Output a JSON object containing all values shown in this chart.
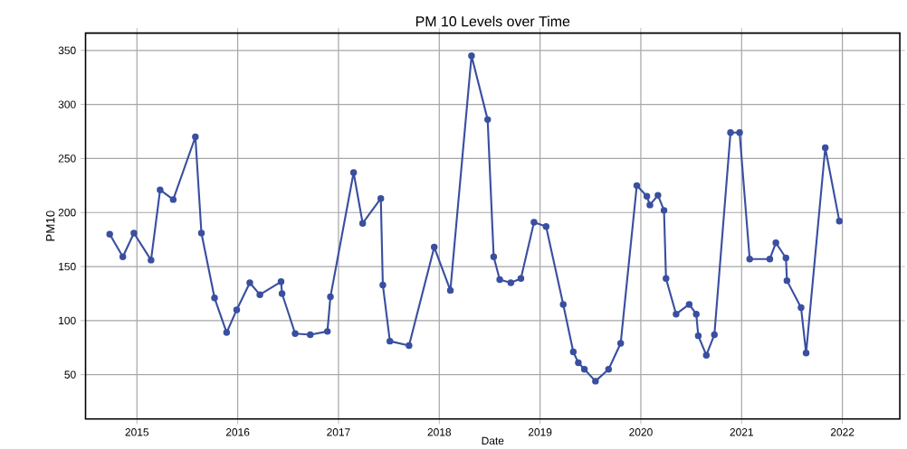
{
  "chart_data": {
    "type": "line",
    "title": "PM 10 Levels over Time",
    "xlabel": "Date",
    "ylabel": "PM10",
    "x": [
      2014.73,
      2014.86,
      2014.97,
      2015.14,
      2015.23,
      2015.36,
      2015.58,
      2015.64,
      2015.77,
      2015.89,
      2015.99,
      2016.12,
      2016.22,
      2016.43,
      2016.44,
      2016.57,
      2016.72,
      2016.89,
      2016.92,
      2017.15,
      2017.24,
      2017.42,
      2017.44,
      2017.51,
      2017.7,
      2017.95,
      2018.11,
      2018.32,
      2018.48,
      2018.54,
      2018.6,
      2018.71,
      2018.81,
      2018.94,
      2019.06,
      2019.23,
      2019.33,
      2019.38,
      2019.44,
      2019.55,
      2019.68,
      2019.8,
      2019.96,
      2020.06,
      2020.09,
      2020.17,
      2020.23,
      2020.25,
      2020.35,
      2020.48,
      2020.55,
      2020.57,
      2020.65,
      2020.73,
      2020.89,
      2020.98,
      2021.08,
      2021.28,
      2021.34,
      2021.44,
      2021.45,
      2021.59,
      2021.64,
      2021.83,
      2021.97
    ],
    "series": [
      {
        "color": "#3a4fa0",
        "values": [
          180,
          159,
          181,
          156,
          221,
          212,
          270,
          181,
          121,
          89,
          110,
          135,
          124,
          136,
          125,
          88,
          87,
          90,
          122,
          237,
          190,
          213,
          133,
          81,
          77,
          168,
          128,
          345,
          286,
          159,
          138,
          135,
          139,
          191,
          187,
          115,
          71,
          61,
          55,
          44,
          55,
          79,
          225,
          215,
          207,
          216,
          202,
          139,
          106,
          115,
          106,
          86,
          68,
          87,
          274,
          274,
          157,
          157,
          172,
          158,
          137,
          112,
          70,
          260,
          192
        ]
      }
    ],
    "xlim": [
      2014.49,
      2022.57
    ],
    "ylim": [
      9,
      366
    ],
    "xticks": [
      2015,
      2016,
      2017,
      2018,
      2019,
      2020,
      2021,
      2022
    ],
    "yticks": [
      50,
      100,
      150,
      200,
      250,
      300,
      350
    ],
    "grid": true,
    "marker": "circle",
    "line_style": "solid"
  }
}
